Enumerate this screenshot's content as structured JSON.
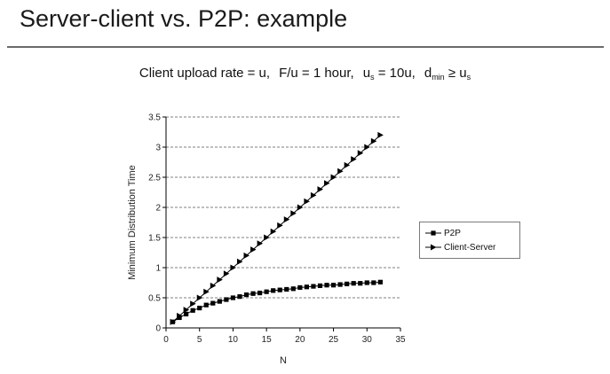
{
  "slide": {
    "title": "Server-client vs. P2P: example",
    "subtitle": {
      "part1": "Client upload rate = u,",
      "part2": "F/u = 1 hour,",
      "part3_pre": "u",
      "part3_sub": "s",
      "part3_post": " = 10u,",
      "part4_pre": "d",
      "part4_sub": "min",
      "part4_mid": " ≥ u",
      "part4_sub2": "s"
    }
  },
  "chart_data": {
    "type": "line",
    "title": "",
    "xlabel": "N",
    "ylabel": "Minimum Distribution Time",
    "xlim": [
      0,
      35
    ],
    "ylim": [
      0,
      3.5
    ],
    "xticks": [
      0,
      5,
      10,
      15,
      20,
      25,
      30,
      35
    ],
    "yticks": [
      0,
      0.5,
      1,
      1.5,
      2,
      2.5,
      3,
      3.5
    ],
    "ytick_labels": [
      "0",
      "0.5",
      "1",
      "1.5",
      "2",
      "2.5",
      "3",
      "3.5"
    ],
    "grid": "horizontal dashed",
    "legend_position": "right",
    "x": [
      1,
      2,
      3,
      4,
      5,
      6,
      7,
      8,
      9,
      10,
      11,
      12,
      13,
      14,
      15,
      16,
      17,
      18,
      19,
      20,
      21,
      22,
      23,
      24,
      25,
      26,
      27,
      28,
      29,
      30,
      31,
      32
    ],
    "series": [
      {
        "name": "P2P",
        "marker": "square",
        "color": "#000000",
        "values": [
          0.1,
          0.17,
          0.23,
          0.29,
          0.33,
          0.38,
          0.41,
          0.44,
          0.47,
          0.5,
          0.52,
          0.55,
          0.57,
          0.58,
          0.6,
          0.62,
          0.63,
          0.64,
          0.65,
          0.67,
          0.68,
          0.69,
          0.7,
          0.71,
          0.71,
          0.72,
          0.73,
          0.74,
          0.74,
          0.75,
          0.75,
          0.76
        ]
      },
      {
        "name": "Client-Server",
        "marker": "triangle-right",
        "color": "#000000",
        "values": [
          0.1,
          0.2,
          0.3,
          0.4,
          0.5,
          0.6,
          0.7,
          0.8,
          0.9,
          1.0,
          1.1,
          1.2,
          1.3,
          1.4,
          1.5,
          1.6,
          1.7,
          1.8,
          1.9,
          2.0,
          2.1,
          2.2,
          2.3,
          2.4,
          2.5,
          2.6,
          2.7,
          2.8,
          2.9,
          3.0,
          3.1,
          3.2
        ]
      }
    ]
  }
}
